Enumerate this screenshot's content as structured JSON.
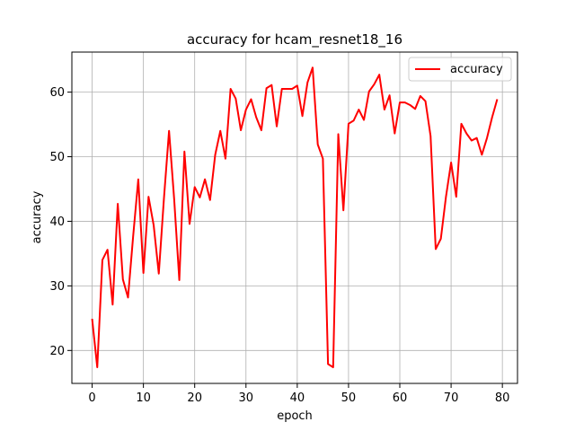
{
  "chart_data": {
    "type": "line",
    "title": "accuracy for hcam_resnet18_16",
    "xlabel": "epoch",
    "ylabel": "accuracy",
    "xlim": [
      -3.95,
      82.95
    ],
    "ylim": [
      14.9,
      66.2
    ],
    "xticks": [
      0,
      10,
      20,
      30,
      40,
      50,
      60,
      70,
      80
    ],
    "yticks": [
      20,
      30,
      40,
      50,
      60
    ],
    "grid": true,
    "legend": "top-right",
    "series": [
      {
        "name": "accuracy",
        "color": "#ff0000",
        "x": [
          0,
          1,
          2,
          3,
          4,
          5,
          6,
          7,
          8,
          9,
          10,
          11,
          12,
          13,
          14,
          15,
          16,
          17,
          18,
          19,
          20,
          21,
          22,
          23,
          24,
          25,
          26,
          27,
          28,
          29,
          30,
          31,
          32,
          33,
          34,
          35,
          36,
          37,
          38,
          39,
          40,
          41,
          42,
          43,
          44,
          45,
          46,
          47,
          48,
          49,
          50,
          51,
          52,
          53,
          54,
          55,
          56,
          57,
          58,
          59,
          60,
          61,
          62,
          63,
          64,
          65,
          66,
          67,
          68,
          69,
          70,
          71,
          72,
          73,
          74,
          75,
          76,
          77,
          78,
          79
        ],
        "values": [
          24.9,
          17.4,
          34.0,
          35.6,
          27.1,
          42.7,
          31.0,
          28.2,
          37.7,
          46.5,
          32.0,
          43.8,
          39.4,
          31.9,
          43.5,
          54.0,
          43.4,
          30.9,
          50.8,
          39.6,
          45.3,
          43.7,
          46.5,
          43.3,
          50.3,
          54.0,
          49.7,
          60.5,
          59.0,
          54.1,
          57.3,
          58.9,
          56.1,
          54.1,
          60.6,
          61.1,
          54.7,
          60.5,
          60.5,
          60.5,
          61.0,
          56.3,
          61.5,
          63.8,
          51.9,
          49.7,
          17.9,
          17.4,
          53.5,
          41.7,
          55.1,
          55.6,
          57.3,
          55.7,
          60.1,
          61.2,
          62.7,
          57.3,
          59.5,
          53.6,
          58.4,
          58.4,
          58.0,
          57.4,
          59.4,
          58.6,
          53.2,
          35.7,
          37.3,
          43.8,
          49.1,
          43.8,
          55.1,
          53.6,
          52.5,
          52.9,
          50.3,
          52.9,
          56.1,
          58.9
        ]
      }
    ]
  }
}
